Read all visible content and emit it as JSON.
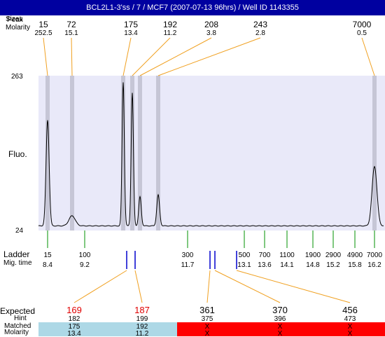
{
  "title": "BCL2L1-3'ss / 7 / MCF7 (2007-07-13 96hrs) / Well ID 1143355",
  "labels": {
    "sizes_overlay": "Sizes",
    "sizes_under": "Peak",
    "molarity_top": "Molarity",
    "fluo": "Fluo.",
    "ladder": "Ladder",
    "mig_time": "Mig. time",
    "expected": "Expected",
    "hint": "Hint",
    "matched": "Matched",
    "molarity_bottom": "Molarity",
    "y_max": "263",
    "y_min": "24"
  },
  "colors": {
    "title_bg": "#0000a0",
    "plot_bg": "#e9e9f9",
    "peak_band": "#c6c6d6",
    "connector": "#f0a020",
    "ladder_tick": "#009000",
    "sample_marker": "#0000cc",
    "expected_red": "#e00000",
    "matched_bg": "#add8e6",
    "unmatched_bg": "#ff0000"
  },
  "chart_data": {
    "type": "line",
    "ylim": [
      24,
      263
    ],
    "ylabel": "Fluo.",
    "peaks": [
      {
        "size": "15",
        "molarity": "252.5",
        "height": 195
      },
      {
        "size": "72",
        "molarity": "15.1",
        "height": 44
      },
      {
        "size": "175",
        "molarity": "13.4",
        "height": 255
      },
      {
        "size": "192",
        "molarity": "11.2",
        "height": 238
      },
      {
        "size": "208",
        "molarity": "3.8",
        "height": 74
      },
      {
        "size": "243",
        "molarity": "2.8",
        "height": 77
      },
      {
        "size": "7000",
        "molarity": "0.5",
        "height": 122
      }
    ],
    "ladder": [
      {
        "size": "15",
        "time": "8.4"
      },
      {
        "size": "100",
        "time": "9.2"
      },
      {
        "size": "300",
        "time": "11.7"
      },
      {
        "size": "500",
        "time": "13.1"
      },
      {
        "size": "700",
        "time": "13.6"
      },
      {
        "size": "1100",
        "time": "14.1"
      },
      {
        "size": "1900",
        "time": "14.8"
      },
      {
        "size": "2900",
        "time": "15.2"
      },
      {
        "size": "4900",
        "time": "15.8"
      },
      {
        "size": "7000",
        "time": "16.2"
      }
    ],
    "expected": [
      {
        "expected": "169",
        "hint": "182",
        "matched": "175",
        "molarity": "13.4",
        "status": "matched"
      },
      {
        "expected": "187",
        "hint": "199",
        "matched": "192",
        "molarity": "11.2",
        "status": "matched"
      },
      {
        "expected": "361",
        "hint": "375",
        "matched": "X",
        "molarity": "X",
        "status": "unmatched"
      },
      {
        "expected": "370",
        "hint": "396",
        "matched": "X",
        "molarity": "X",
        "status": "unmatched"
      },
      {
        "expected": "456",
        "hint": "473",
        "matched": "X",
        "molarity": "X",
        "status": "unmatched"
      }
    ]
  }
}
